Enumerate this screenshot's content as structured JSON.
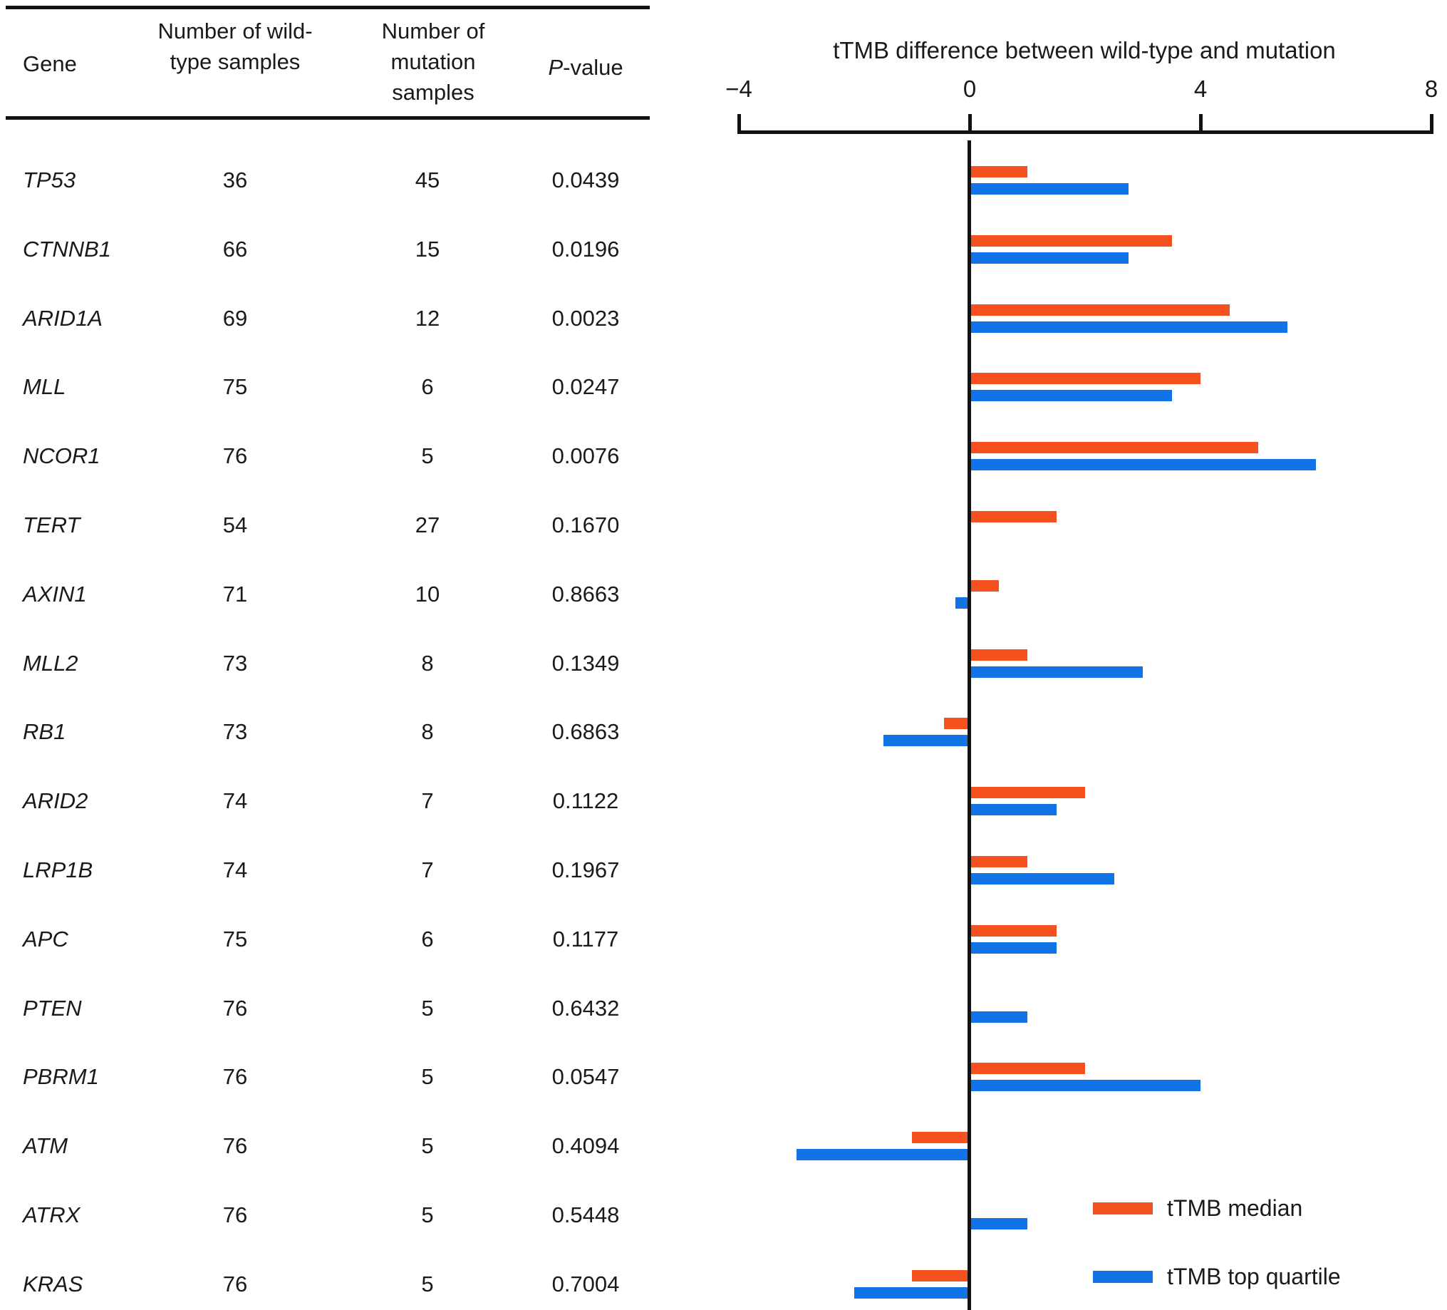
{
  "table": {
    "headers": {
      "gene": "Gene",
      "wildtype": "Number of wild-type samples",
      "mutation": "Number of mutation samples",
      "pvalue_italic": "P",
      "pvalue_rest": "-value"
    },
    "rows": [
      {
        "gene": "TP53",
        "wildtype": "36",
        "mutation": "45",
        "pvalue": "0.0439"
      },
      {
        "gene": "CTNNB1",
        "wildtype": "66",
        "mutation": "15",
        "pvalue": "0.0196"
      },
      {
        "gene": "ARID1A",
        "wildtype": "69",
        "mutation": "12",
        "pvalue": "0.0023"
      },
      {
        "gene": "MLL",
        "wildtype": "75",
        "mutation": "6",
        "pvalue": "0.0247"
      },
      {
        "gene": "NCOR1",
        "wildtype": "76",
        "mutation": "5",
        "pvalue": "0.0076"
      },
      {
        "gene": "TERT",
        "wildtype": "54",
        "mutation": "27",
        "pvalue": "0.1670"
      },
      {
        "gene": "AXIN1",
        "wildtype": "71",
        "mutation": "10",
        "pvalue": "0.8663"
      },
      {
        "gene": "MLL2",
        "wildtype": "73",
        "mutation": "8",
        "pvalue": "0.1349"
      },
      {
        "gene": "RB1",
        "wildtype": "73",
        "mutation": "8",
        "pvalue": "0.6863"
      },
      {
        "gene": "ARID2",
        "wildtype": "74",
        "mutation": "7",
        "pvalue": "0.1122"
      },
      {
        "gene": "LRP1B",
        "wildtype": "74",
        "mutation": "7",
        "pvalue": "0.1967"
      },
      {
        "gene": "APC",
        "wildtype": "75",
        "mutation": "6",
        "pvalue": "0.1177"
      },
      {
        "gene": "PTEN",
        "wildtype": "76",
        "mutation": "5",
        "pvalue": "0.6432"
      },
      {
        "gene": "PBRM1",
        "wildtype": "76",
        "mutation": "5",
        "pvalue": "0.0547"
      },
      {
        "gene": "ATM",
        "wildtype": "76",
        "mutation": "5",
        "pvalue": "0.4094"
      },
      {
        "gene": "ATRX",
        "wildtype": "76",
        "mutation": "5",
        "pvalue": "0.5448"
      },
      {
        "gene": "KRAS",
        "wildtype": "76",
        "mutation": "5",
        "pvalue": "0.7004"
      }
    ]
  },
  "chart_data": {
    "type": "bar",
    "orientation": "horizontal",
    "title": "tTMB difference between wild-type and mutation",
    "xlabel": "",
    "ylabel": "",
    "xlim": [
      -4,
      8
    ],
    "xticks": [
      -4,
      0,
      4,
      8
    ],
    "xtick_labels": [
      "−4",
      "0",
      "4",
      "8"
    ],
    "grid": false,
    "zero_line": true,
    "legend_position": "bottom-right",
    "categories": [
      "TP53",
      "CTNNB1",
      "ARID1A",
      "MLL",
      "NCOR1",
      "TERT",
      "AXIN1",
      "MLL2",
      "RB1",
      "ARID2",
      "LRP1B",
      "APC",
      "PTEN",
      "PBRM1",
      "ATM",
      "ATRX",
      "KRAS"
    ],
    "series": [
      {
        "name": "tTMB median",
        "color": "#F4511E",
        "values": [
          1.0,
          3.5,
          4.5,
          4.0,
          5.0,
          1.5,
          0.5,
          1.0,
          -0.45,
          2.0,
          1.0,
          1.5,
          0,
          2.0,
          -1.0,
          0,
          -1.0
        ]
      },
      {
        "name": "tTMB top quartile",
        "color": "#1273E6",
        "values": [
          2.75,
          2.75,
          5.5,
          3.5,
          6.0,
          0,
          -0.25,
          3.0,
          -1.5,
          1.5,
          2.5,
          1.5,
          1.0,
          4.0,
          -3.0,
          1.0,
          -2.0
        ]
      }
    ]
  },
  "legend": {
    "items": [
      {
        "label": "tTMB median",
        "color": "#F4511E"
      },
      {
        "label": "tTMB top quartile",
        "color": "#1273E6"
      }
    ]
  }
}
